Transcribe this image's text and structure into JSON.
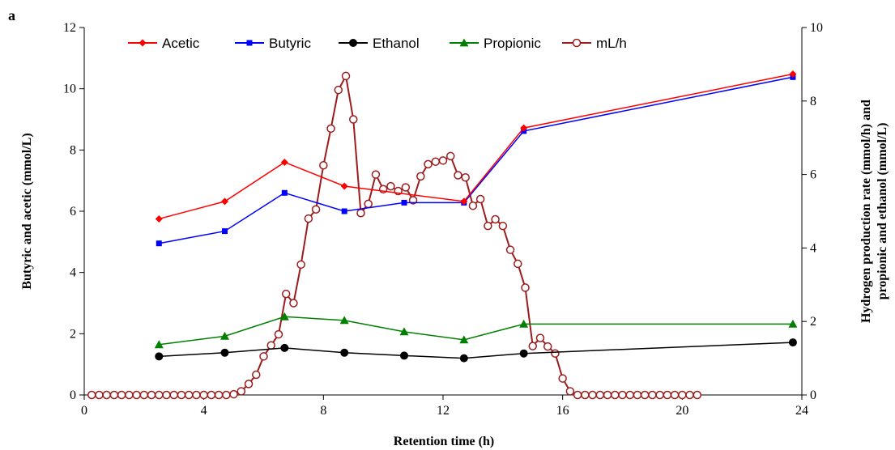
{
  "chart_data": {
    "type": "line",
    "panel_label": "a",
    "xlabel": "Retention time (h)",
    "ylabel_left": "Butyric and acetic (mmol/L)",
    "ylabel_right_line1": "Hydrogen production rate (mmol/h) and",
    "ylabel_right_line2": "propionic and ethanol (mmol/L)",
    "xlim": [
      0,
      24
    ],
    "ylim_left": [
      0,
      12
    ],
    "ylim_right": [
      0,
      10
    ],
    "x_ticks": [
      0,
      4,
      8,
      12,
      16,
      20,
      24
    ],
    "y_left_ticks": [
      0,
      2,
      4,
      6,
      8,
      10,
      12
    ],
    "y_right_ticks": [
      0,
      2,
      4,
      6,
      8,
      10
    ],
    "legend_position": "top",
    "series": [
      {
        "name": "Acetic",
        "axis": "left",
        "color": "#ff0000",
        "marker": "diamond",
        "x": [
          2.5,
          4.7,
          6.7,
          8.7,
          12.7,
          14.7,
          23.7
        ],
        "y": [
          5.75,
          6.32,
          7.6,
          6.82,
          6.32,
          8.72,
          10.48
        ]
      },
      {
        "name": "Butyric",
        "axis": "left",
        "color": "#0000ff",
        "marker": "square",
        "x": [
          2.5,
          4.7,
          6.7,
          8.7,
          10.7,
          12.7,
          14.7,
          23.7
        ],
        "y": [
          4.95,
          5.35,
          6.6,
          6.0,
          6.28,
          6.28,
          8.62,
          10.38
        ]
      },
      {
        "name": "Ethanol",
        "axis": "right",
        "color": "#000000",
        "marker": "circle",
        "x": [
          2.5,
          4.7,
          6.7,
          8.7,
          10.7,
          12.7,
          14.7,
          23.7
        ],
        "y": [
          1.05,
          1.15,
          1.28,
          1.15,
          1.07,
          1.0,
          1.13,
          1.43
        ]
      },
      {
        "name": "Propionic",
        "axis": "right",
        "color": "#008000",
        "marker": "triangle",
        "x": [
          2.5,
          4.7,
          6.7,
          8.7,
          10.7,
          12.7,
          14.7,
          23.7
        ],
        "y": [
          1.37,
          1.6,
          2.13,
          2.03,
          1.72,
          1.5,
          1.93,
          1.93
        ]
      },
      {
        "name": "mL/h",
        "axis": "right",
        "color": "#9b1c1c",
        "marker": "open-circle",
        "x": [
          0.25,
          0.5,
          0.75,
          1.0,
          1.25,
          1.5,
          1.75,
          2.0,
          2.25,
          2.5,
          2.75,
          3.0,
          3.25,
          3.5,
          3.75,
          4.0,
          4.25,
          4.5,
          4.75,
          5.0,
          5.25,
          5.5,
          5.75,
          6.0,
          6.25,
          6.5,
          6.75,
          7.0,
          7.25,
          7.5,
          7.75,
          8.0,
          8.25,
          8.5,
          8.75,
          9.0,
          9.25,
          9.5,
          9.75,
          10.0,
          10.25,
          10.5,
          10.75,
          11.0,
          11.25,
          11.5,
          11.75,
          12.0,
          12.25,
          12.5,
          12.75,
          13.0,
          13.25,
          13.5,
          13.75,
          14.0,
          14.25,
          14.5,
          14.75,
          15.0,
          15.25,
          15.5,
          15.75,
          16.0,
          16.25,
          16.5,
          16.75,
          17.0,
          17.25,
          17.5,
          17.75,
          18.0,
          18.25,
          18.5,
          18.75,
          19.0,
          19.25,
          19.5,
          19.75,
          20.0,
          20.25,
          20.5
        ],
        "y": [
          0,
          0,
          0,
          0,
          0,
          0,
          0,
          0,
          0,
          0,
          0,
          0,
          0,
          0,
          0,
          0,
          0,
          0,
          0,
          0.02,
          0.1,
          0.3,
          0.55,
          1.05,
          1.35,
          1.65,
          2.75,
          2.5,
          3.55,
          4.8,
          5.05,
          6.25,
          7.25,
          8.3,
          8.68,
          7.5,
          4.95,
          5.2,
          6.0,
          5.6,
          5.68,
          5.55,
          5.65,
          5.3,
          5.95,
          6.28,
          6.35,
          6.38,
          6.5,
          5.98,
          5.92,
          5.15,
          5.33,
          4.6,
          4.78,
          4.6,
          3.95,
          3.57,
          2.92,
          1.33,
          1.55,
          1.32,
          1.13,
          0.45,
          0.1,
          0,
          0,
          0,
          0,
          0,
          0,
          0,
          0,
          0,
          0,
          0,
          0,
          0,
          0,
          0,
          0,
          0
        ]
      }
    ]
  }
}
